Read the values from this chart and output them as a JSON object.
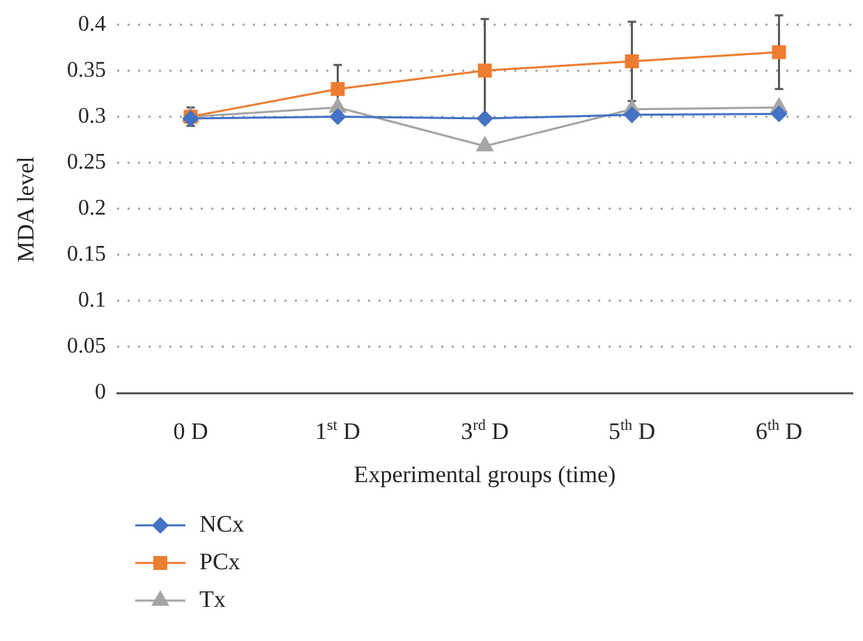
{
  "chart_data": {
    "type": "line",
    "categories": [
      "0 D",
      "1$^{st}$ D",
      "3$^{rd}$ D",
      "5$^{th}$ D",
      "6$^{th}$ D"
    ],
    "xlabel": "Experimental groups (time)",
    "ylabel": "MDA level",
    "ylim": [
      0,
      0.4
    ],
    "yticks": [
      0,
      0.05,
      0.1,
      0.15,
      0.2,
      0.25,
      0.3,
      0.35,
      0.4
    ],
    "grid": "y",
    "legend": "bottom left",
    "series": [
      {
        "name": "NCx",
        "color": "#4472c4",
        "marker": "diamond",
        "values": [
          0.298,
          0.3,
          0.298,
          0.302,
          0.303
        ]
      },
      {
        "name": "PCx",
        "color": "#ed7d31",
        "marker": "square",
        "values": [
          0.3,
          0.33,
          0.35,
          0.36,
          0.37
        ],
        "errors": [
          0.01,
          0.026,
          0.056,
          0.043,
          0.04
        ]
      },
      {
        "name": "Tx",
        "color": "#a5a5a5",
        "marker": "triangle",
        "values": [
          0.3,
          0.31,
          0.268,
          0.308,
          0.31
        ]
      }
    ]
  }
}
